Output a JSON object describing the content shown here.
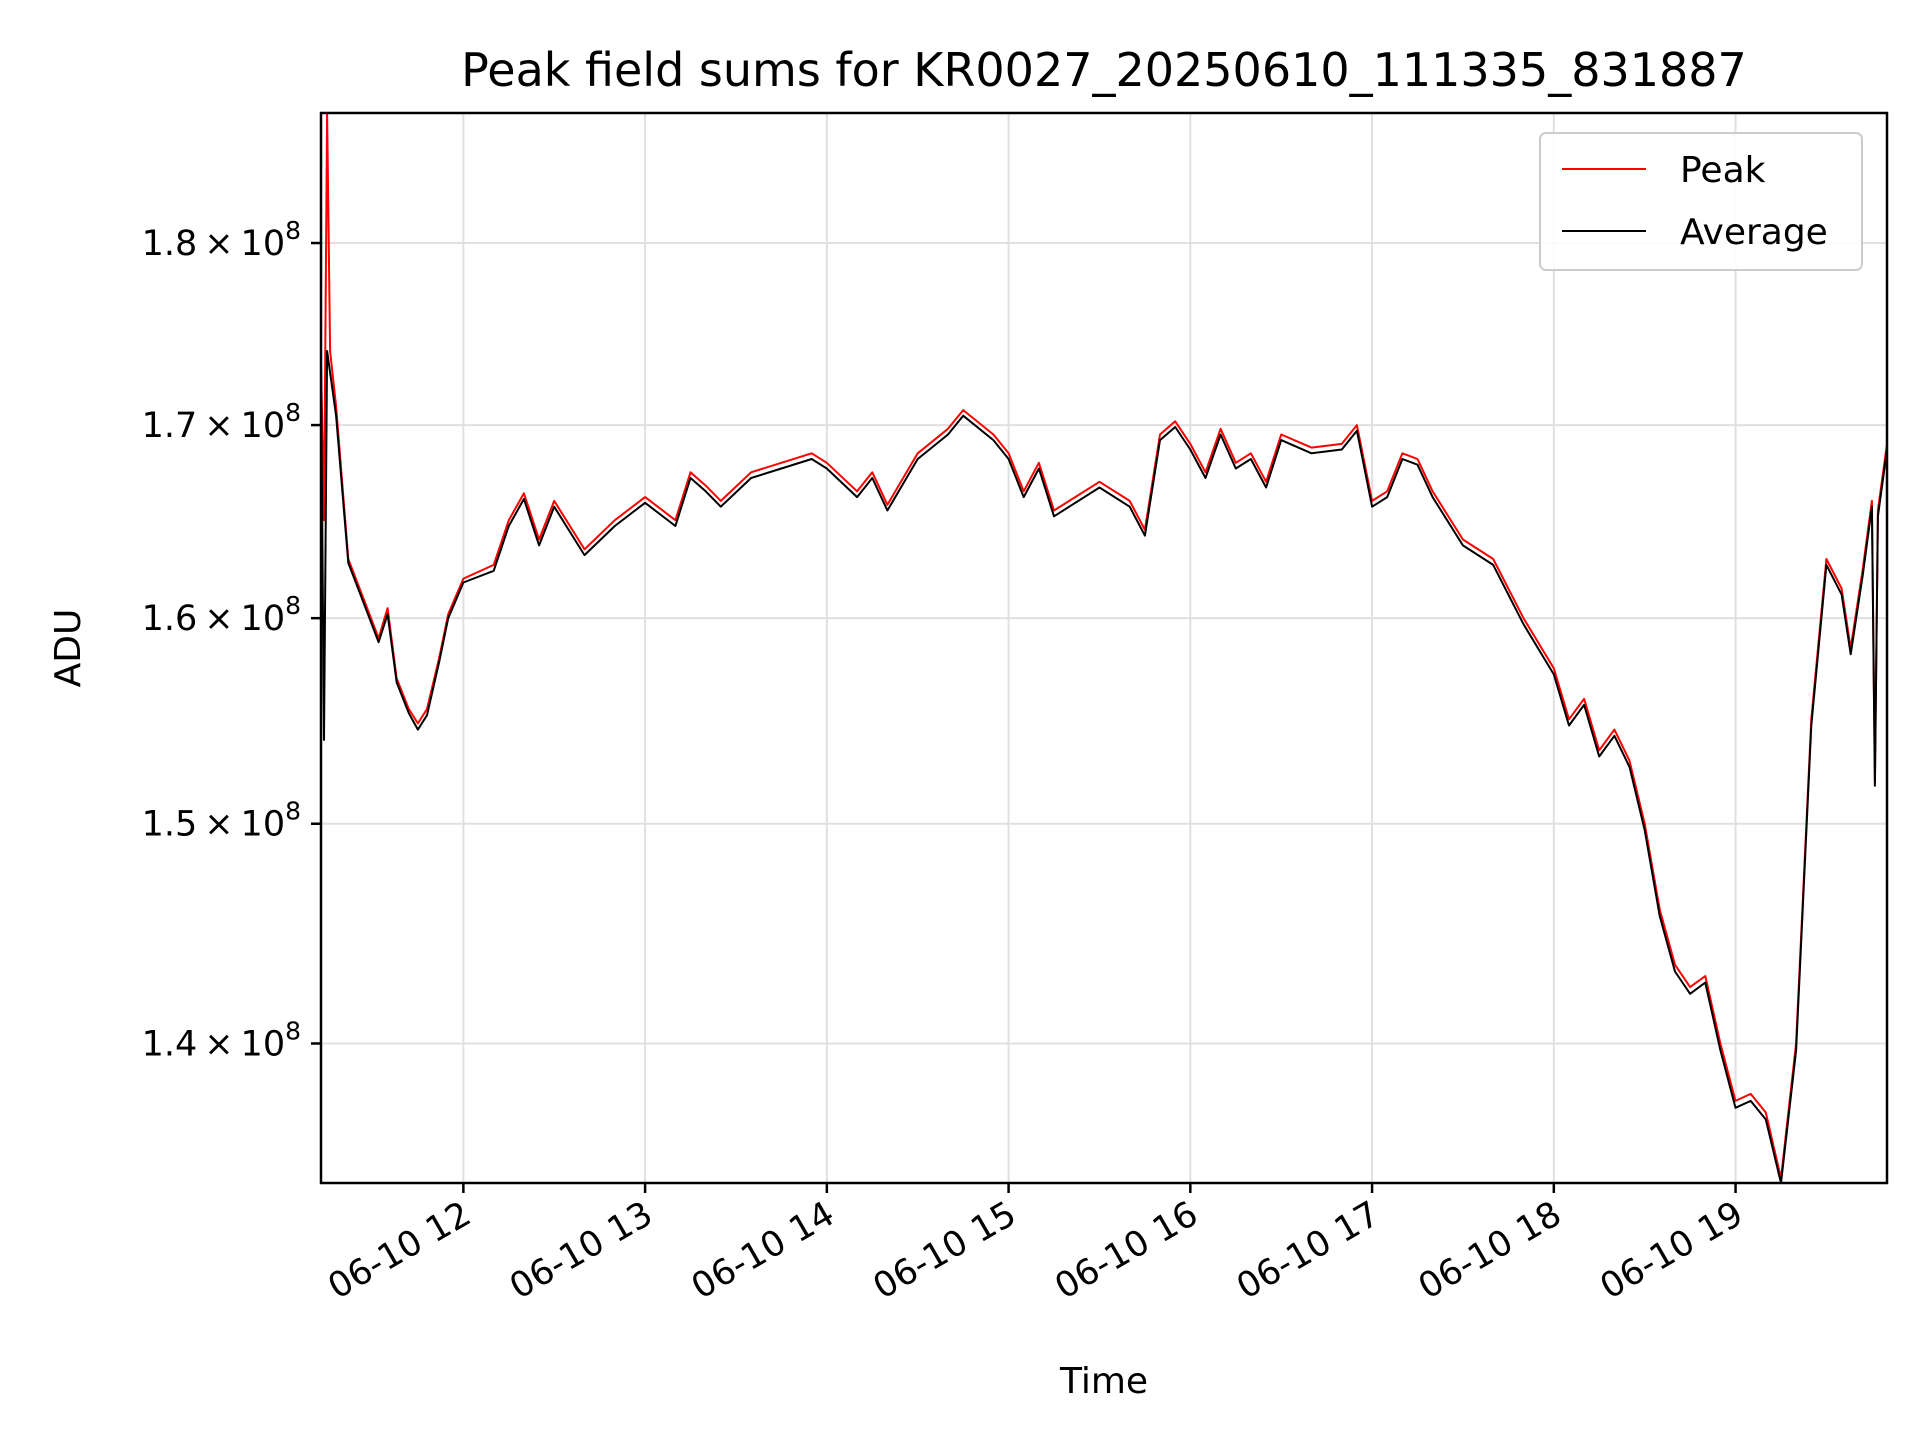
{
  "chart_data": {
    "type": "line",
    "title": "Peak field sums for KR0027_20250610_111335_831887",
    "xlabel": "Time",
    "ylabel": "ADU",
    "x_scale": "time",
    "y_scale": "log",
    "xlim": [
      "2025-06-10 11:13",
      "2025-06-10 19:50"
    ],
    "ylim": [
      134000000,
      187500000
    ],
    "x_ticks": [
      "06-10 12",
      "06-10 13",
      "06-10 14",
      "06-10 15",
      "06-10 16",
      "06-10 17",
      "06-10 18",
      "06-10 19"
    ],
    "y_ticks": [
      {
        "value": 140000000,
        "mantissa": "1.4",
        "base": "10",
        "exp": "8"
      },
      {
        "value": 150000000,
        "mantissa": "1.5",
        "base": "10",
        "exp": "8"
      },
      {
        "value": 160000000,
        "mantissa": "1.6",
        "base": "10",
        "exp": "8"
      },
      {
        "value": 170000000,
        "mantissa": "1.7",
        "base": "10",
        "exp": "8"
      },
      {
        "value": 180000000,
        "mantissa": "1.8",
        "base": "10",
        "exp": "8"
      }
    ],
    "grid": true,
    "legend_position": "top-right",
    "series": [
      {
        "name": "Peak",
        "color": "#ff0000",
        "points": [
          [
            "11:13",
            173500000
          ],
          [
            "11:14",
            165000000
          ],
          [
            "11:15",
            187500000
          ],
          [
            "11:16",
            174000000
          ],
          [
            "11:18",
            171000000
          ],
          [
            "11:22",
            163000000
          ],
          [
            "11:27",
            161000000
          ],
          [
            "11:32",
            159000000
          ],
          [
            "11:35",
            160500000
          ],
          [
            "11:38",
            157000000
          ],
          [
            "11:42",
            155500000
          ],
          [
            "11:45",
            154800000
          ],
          [
            "11:48",
            155500000
          ],
          [
            "11:52",
            158000000
          ],
          [
            "11:55",
            160200000
          ],
          [
            "12:00",
            162000000
          ],
          [
            "12:10",
            162700000
          ],
          [
            "12:15",
            165000000
          ],
          [
            "12:20",
            166400000
          ],
          [
            "12:25",
            164000000
          ],
          [
            "12:30",
            166000000
          ],
          [
            "12:40",
            163500000
          ],
          [
            "12:50",
            165000000
          ],
          [
            "13:00",
            166200000
          ],
          [
            "13:10",
            165000000
          ],
          [
            "13:15",
            167500000
          ],
          [
            "13:20",
            166800000
          ],
          [
            "13:25",
            166000000
          ],
          [
            "13:35",
            167500000
          ],
          [
            "13:45",
            168000000
          ],
          [
            "13:55",
            168500000
          ],
          [
            "14:00",
            168000000
          ],
          [
            "14:10",
            166500000
          ],
          [
            "14:15",
            167500000
          ],
          [
            "14:20",
            165800000
          ],
          [
            "14:30",
            168500000
          ],
          [
            "14:40",
            169800000
          ],
          [
            "14:45",
            170800000
          ],
          [
            "14:55",
            169500000
          ],
          [
            "15:00",
            168500000
          ],
          [
            "15:05",
            166500000
          ],
          [
            "15:10",
            168000000
          ],
          [
            "15:15",
            165500000
          ],
          [
            "15:20",
            166000000
          ],
          [
            "15:30",
            167000000
          ],
          [
            "15:40",
            166000000
          ],
          [
            "15:45",
            164500000
          ],
          [
            "15:50",
            169500000
          ],
          [
            "15:55",
            170200000
          ],
          [
            "16:00",
            169000000
          ],
          [
            "16:05",
            167500000
          ],
          [
            "16:10",
            169800000
          ],
          [
            "16:15",
            168000000
          ],
          [
            "16:20",
            168500000
          ],
          [
            "16:25",
            167000000
          ],
          [
            "16:30",
            169500000
          ],
          [
            "16:40",
            168800000
          ],
          [
            "16:50",
            169000000
          ],
          [
            "16:55",
            170000000
          ],
          [
            "17:00",
            166000000
          ],
          [
            "17:05",
            166500000
          ],
          [
            "17:10",
            168500000
          ],
          [
            "17:15",
            168200000
          ],
          [
            "17:20",
            166500000
          ],
          [
            "17:30",
            164000000
          ],
          [
            "17:40",
            163000000
          ],
          [
            "17:50",
            160000000
          ],
          [
            "18:00",
            157500000
          ],
          [
            "18:05",
            155000000
          ],
          [
            "18:10",
            156000000
          ],
          [
            "18:15",
            153500000
          ],
          [
            "18:20",
            154500000
          ],
          [
            "18:25",
            153000000
          ],
          [
            "18:30",
            150000000
          ],
          [
            "18:35",
            146000000
          ],
          [
            "18:40",
            143500000
          ],
          [
            "18:45",
            142500000
          ],
          [
            "18:50",
            143000000
          ],
          [
            "18:55",
            140000000
          ],
          [
            "19:00",
            137500000
          ],
          [
            "19:05",
            137800000
          ],
          [
            "19:10",
            137000000
          ],
          [
            "19:15",
            134200000
          ],
          [
            "19:20",
            140000000
          ],
          [
            "19:25",
            155000000
          ],
          [
            "19:30",
            163000000
          ],
          [
            "19:35",
            161500000
          ],
          [
            "19:38",
            158500000
          ],
          [
            "19:42",
            162500000
          ],
          [
            "19:45",
            166000000
          ],
          [
            "19:46",
            152000000
          ],
          [
            "19:47",
            165500000
          ],
          [
            "19:50",
            169000000
          ]
        ]
      },
      {
        "name": "Average",
        "color": "#000000",
        "points": [
          [
            "11:13",
            173000000
          ],
          [
            "11:14",
            154000000
          ],
          [
            "11:15",
            174000000
          ],
          [
            "11:18",
            170500000
          ],
          [
            "11:22",
            162800000
          ],
          [
            "11:27",
            160800000
          ],
          [
            "11:32",
            158800000
          ],
          [
            "11:35",
            160200000
          ],
          [
            "11:38",
            156800000
          ],
          [
            "11:42",
            155300000
          ],
          [
            "11:45",
            154500000
          ],
          [
            "11:48",
            155200000
          ],
          [
            "11:52",
            157800000
          ],
          [
            "11:55",
            160000000
          ],
          [
            "12:00",
            161800000
          ],
          [
            "12:10",
            162400000
          ],
          [
            "12:15",
            164700000
          ],
          [
            "12:20",
            166100000
          ],
          [
            "12:25",
            163700000
          ],
          [
            "12:30",
            165700000
          ],
          [
            "12:40",
            163200000
          ],
          [
            "12:50",
            164700000
          ],
          [
            "13:00",
            165900000
          ],
          [
            "13:10",
            164700000
          ],
          [
            "13:15",
            167200000
          ],
          [
            "13:20",
            166500000
          ],
          [
            "13:25",
            165700000
          ],
          [
            "13:35",
            167200000
          ],
          [
            "13:45",
            167700000
          ],
          [
            "13:55",
            168200000
          ],
          [
            "14:00",
            167700000
          ],
          [
            "14:10",
            166200000
          ],
          [
            "14:15",
            167200000
          ],
          [
            "14:20",
            165500000
          ],
          [
            "14:30",
            168200000
          ],
          [
            "14:40",
            169500000
          ],
          [
            "14:45",
            170500000
          ],
          [
            "14:55",
            169200000
          ],
          [
            "15:00",
            168200000
          ],
          [
            "15:05",
            166200000
          ],
          [
            "15:10",
            167700000
          ],
          [
            "15:15",
            165200000
          ],
          [
            "15:20",
            165700000
          ],
          [
            "15:30",
            166700000
          ],
          [
            "15:40",
            165700000
          ],
          [
            "15:45",
            164200000
          ],
          [
            "15:50",
            169200000
          ],
          [
            "15:55",
            169900000
          ],
          [
            "16:00",
            168700000
          ],
          [
            "16:05",
            167200000
          ],
          [
            "16:10",
            169500000
          ],
          [
            "16:15",
            167700000
          ],
          [
            "16:20",
            168200000
          ],
          [
            "16:25",
            166700000
          ],
          [
            "16:30",
            169200000
          ],
          [
            "16:40",
            168500000
          ],
          [
            "16:50",
            168700000
          ],
          [
            "16:55",
            169700000
          ],
          [
            "17:00",
            165700000
          ],
          [
            "17:05",
            166200000
          ],
          [
            "17:10",
            168200000
          ],
          [
            "17:15",
            167900000
          ],
          [
            "17:20",
            166200000
          ],
          [
            "17:30",
            163700000
          ],
          [
            "17:40",
            162700000
          ],
          [
            "17:50",
            159700000
          ],
          [
            "18:00",
            157200000
          ],
          [
            "18:05",
            154700000
          ],
          [
            "18:10",
            155700000
          ],
          [
            "18:15",
            153200000
          ],
          [
            "18:20",
            154200000
          ],
          [
            "18:25",
            152700000
          ],
          [
            "18:30",
            149700000
          ],
          [
            "18:35",
            145700000
          ],
          [
            "18:40",
            143200000
          ],
          [
            "18:45",
            142200000
          ],
          [
            "18:50",
            142700000
          ],
          [
            "18:55",
            139700000
          ],
          [
            "19:00",
            137200000
          ],
          [
            "19:05",
            137500000
          ],
          [
            "19:10",
            136700000
          ],
          [
            "19:15",
            134000000
          ],
          [
            "19:20",
            139700000
          ],
          [
            "19:25",
            154700000
          ],
          [
            "19:30",
            162700000
          ],
          [
            "19:35",
            161200000
          ],
          [
            "19:38",
            158200000
          ],
          [
            "19:42",
            162200000
          ],
          [
            "19:45",
            165700000
          ],
          [
            "19:46",
            151800000
          ],
          [
            "19:47",
            165200000
          ],
          [
            "19:50",
            168700000
          ]
        ]
      }
    ]
  }
}
